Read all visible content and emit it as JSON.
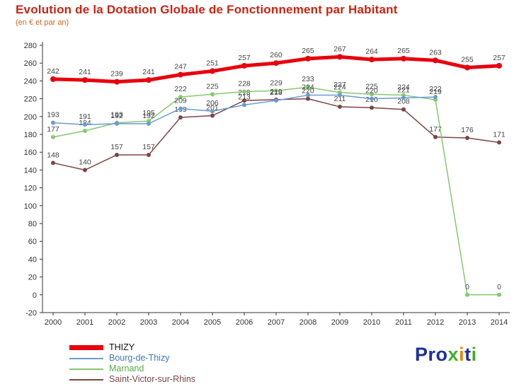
{
  "title": "Evolution de la Dotation Globale de Fonctionnement par Habitant",
  "subtitle": "(en € et par an)",
  "colors": {
    "title": "#cc2211",
    "subtitle": "#cc6622",
    "axis": "#333333",
    "point_label": "#444444",
    "background": "#ffffff"
  },
  "chart_data": {
    "type": "line",
    "x": [
      2000,
      2001,
      2002,
      2003,
      2004,
      2005,
      2006,
      2007,
      2008,
      2009,
      2010,
      2011,
      2012,
      2013,
      2014
    ],
    "ylim": [
      -20,
      280
    ],
    "ytick_step": 20,
    "grid": false,
    "legend_position": "bottom-left",
    "point_labels": true,
    "series": [
      {
        "name": "THIZY",
        "color": "#e8000d",
        "label_color": "#111111",
        "width": 5,
        "values": [
          242,
          241,
          239,
          241,
          247,
          251,
          257,
          260,
          265,
          267,
          264,
          265,
          263,
          255,
          257
        ]
      },
      {
        "name": "Bourg-de-Thizy",
        "color": "#6b9bd2",
        "label_color": "#4477bb",
        "width": 1.5,
        "values": [
          193,
          191,
          192,
          192,
          209,
          206,
          213,
          218,
          224,
          224,
          220,
          221,
          222,
          null,
          null
        ]
      },
      {
        "name": "Marnand",
        "color": "#85c96e",
        "label_color": "#55aa44",
        "width": 1.5,
        "values": [
          177,
          184,
          193,
          195,
          222,
          225,
          228,
          229,
          233,
          227,
          225,
          224,
          219,
          0,
          0
        ]
      },
      {
        "name": "Saint-Victor-sur-Rhins",
        "color": "#7d4545",
        "label_color": "#7d4545",
        "width": 1.5,
        "values": [
          148,
          140,
          157,
          157,
          199,
          201,
          218,
          219,
          220,
          211,
          210,
          208,
          177,
          176,
          171
        ]
      }
    ]
  },
  "logo": {
    "text": "Proxiti",
    "letters": [
      {
        "ch": "P",
        "color": "#1b2f9e"
      },
      {
        "ch": "r",
        "color": "#1b2f9e"
      },
      {
        "ch": "o",
        "color": "#1b2f9e"
      },
      {
        "ch": "x",
        "color": "#3fae2a"
      },
      {
        "ch": "i",
        "color": "#f08300"
      },
      {
        "ch": "t",
        "color": "#1b2f9e"
      },
      {
        "ch": "i",
        "color": "#3fae2a"
      }
    ]
  }
}
